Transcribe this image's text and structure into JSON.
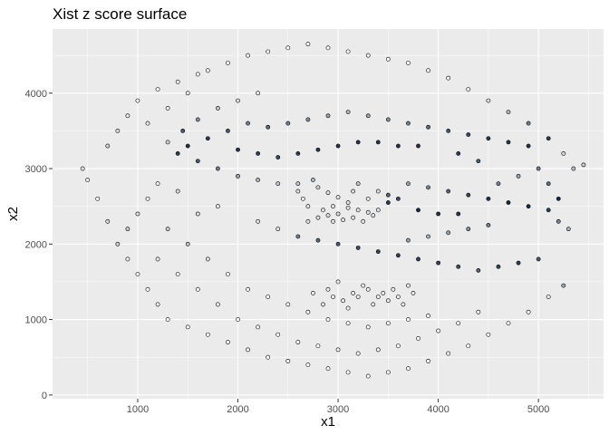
{
  "chart_data": {
    "type": "scatter",
    "title": "Xist z score surface",
    "xlabel": "x1",
    "ylabel": "x2",
    "xlim": [
      150,
      5650
    ],
    "ylim": [
      -50,
      4850
    ],
    "x_ticks": [
      1000,
      2000,
      3000,
      4000,
      5000
    ],
    "x_tick_labels": [
      "1000",
      "2000",
      "3000",
      "4000",
      "5000"
    ],
    "y_ticks": [
      0,
      1000,
      2000,
      3000,
      4000
    ],
    "y_tick_labels": [
      "0",
      "1000",
      "2000",
      "3000",
      "4000"
    ],
    "grid": true,
    "legend": "none",
    "colors": {
      "panel_background": "#ebebeb",
      "grid_major": "#ffffff",
      "point_outline": "#000000",
      "point_fill_low": "#ffffff",
      "point_fill_high": "#132b43"
    },
    "series": [
      {
        "values": [
          [
            3000,
            2400
          ],
          [
            3150,
            2350
          ],
          [
            2950,
            2300
          ],
          [
            3300,
            2420
          ],
          [
            2850,
            2450
          ],
          [
            3100,
            2480
          ],
          [
            3250,
            2300
          ],
          [
            2900,
            2380
          ],
          [
            3200,
            2450
          ],
          [
            3050,
            2320
          ],
          [
            2800,
            2350
          ],
          [
            3350,
            2380
          ],
          [
            2700,
            2300
          ],
          [
            3400,
            2450
          ],
          [
            2950,
            2500
          ],
          [
            3100,
            2550
          ],
          [
            3000,
            2620
          ],
          [
            2900,
            2680
          ],
          [
            3150,
            2700
          ],
          [
            2800,
            2750
          ],
          [
            3200,
            2800
          ],
          [
            2750,
            2850
          ],
          [
            3300,
            2600
          ],
          [
            3400,
            2700
          ],
          [
            3500,
            2650
          ],
          [
            3600,
            2600
          ],
          [
            2650,
            2600
          ],
          [
            2600,
            2700
          ],
          [
            3500,
            2550
          ],
          [
            2700,
            2500
          ],
          [
            3050,
            1250
          ],
          [
            3200,
            1300
          ],
          [
            3350,
            1200
          ],
          [
            3450,
            1350
          ],
          [
            2950,
            1300
          ],
          [
            3100,
            1150
          ],
          [
            3300,
            1400
          ],
          [
            2850,
            1200
          ],
          [
            3500,
            1250
          ],
          [
            3600,
            1300
          ],
          [
            3750,
            1350
          ],
          [
            3650,
            1200
          ],
          [
            2750,
            1350
          ],
          [
            3550,
            1400
          ],
          [
            3150,
            1350
          ],
          [
            3400,
            1300
          ],
          [
            3250,
            1450
          ],
          [
            2900,
            1400
          ],
          [
            3000,
            1500
          ],
          [
            3700,
            1450
          ],
          [
            1500,
            3300
          ],
          [
            1700,
            3400
          ],
          [
            1900,
            3500
          ],
          [
            2100,
            3600
          ],
          [
            2300,
            3550
          ],
          [
            2500,
            3600
          ],
          [
            2700,
            3650
          ],
          [
            2900,
            3700
          ],
          [
            3100,
            3750
          ],
          [
            3300,
            3700
          ],
          [
            3500,
            3650
          ],
          [
            3700,
            3600
          ],
          [
            3900,
            3550
          ],
          [
            4100,
            3500
          ],
          [
            4300,
            3450
          ],
          [
            4500,
            3400
          ],
          [
            4700,
            3350
          ],
          [
            4900,
            3300
          ],
          [
            1600,
            3100
          ],
          [
            1800,
            3000
          ],
          [
            2000,
            2900
          ],
          [
            2200,
            2850
          ],
          [
            2400,
            2800
          ],
          [
            2600,
            2800
          ],
          [
            3700,
            2800
          ],
          [
            3900,
            2750
          ],
          [
            4100,
            2700
          ],
          [
            4300,
            2650
          ],
          [
            4500,
            2600
          ],
          [
            4700,
            2550
          ],
          [
            4900,
            2500
          ],
          [
            5100,
            2450
          ],
          [
            5200,
            2300
          ],
          [
            5200,
            2600
          ],
          [
            4600,
            2800
          ],
          [
            4800,
            2900
          ],
          [
            5000,
            3000
          ],
          [
            5100,
            2800
          ],
          [
            4400,
            3100
          ],
          [
            4200,
            3200
          ],
          [
            3800,
            3300
          ],
          [
            3600,
            3300
          ],
          [
            3400,
            3350
          ],
          [
            3200,
            3350
          ],
          [
            3000,
            3300
          ],
          [
            2800,
            3250
          ],
          [
            2600,
            3200
          ],
          [
            2400,
            3150
          ],
          [
            2200,
            3200
          ],
          [
            2000,
            3250
          ],
          [
            2600,
            2100
          ],
          [
            2800,
            2050
          ],
          [
            3000,
            2000
          ],
          [
            3200,
            1950
          ],
          [
            3400,
            1900
          ],
          [
            3600,
            1850
          ],
          [
            3800,
            1800
          ],
          [
            4000,
            1750
          ],
          [
            4200,
            1700
          ],
          [
            4400,
            1650
          ],
          [
            4600,
            1700
          ],
          [
            4800,
            1750
          ],
          [
            5000,
            1800
          ],
          [
            2400,
            2200
          ],
          [
            2200,
            2300
          ],
          [
            3900,
            2100
          ],
          [
            4100,
            2150
          ],
          [
            4300,
            2200
          ],
          [
            4500,
            2250
          ],
          [
            3700,
            2050
          ],
          [
            4000,
            2400
          ],
          [
            4200,
            2400
          ],
          [
            3800,
            2450
          ],
          [
            1400,
            3200
          ],
          [
            1300,
            3350
          ],
          [
            1450,
            3500
          ],
          [
            1600,
            3650
          ],
          [
            1800,
            3800
          ],
          [
            2000,
            3900
          ],
          [
            2200,
            4000
          ],
          [
            800,
            2000
          ],
          [
            900,
            1800
          ],
          [
            1000,
            1600
          ],
          [
            1100,
            1400
          ],
          [
            1200,
            1200
          ],
          [
            1300,
            1000
          ],
          [
            1500,
            900
          ],
          [
            1700,
            800
          ],
          [
            1900,
            700
          ],
          [
            2100,
            600
          ],
          [
            2300,
            500
          ],
          [
            2500,
            450
          ],
          [
            2700,
            400
          ],
          [
            2900,
            350
          ],
          [
            3100,
            300
          ],
          [
            3300,
            250
          ],
          [
            3500,
            300
          ],
          [
            3700,
            350
          ],
          [
            3900,
            450
          ],
          [
            4100,
            550
          ],
          [
            4300,
            650
          ],
          [
            4500,
            800
          ],
          [
            4700,
            950
          ],
          [
            4900,
            1100
          ],
          [
            5100,
            1300
          ],
          [
            5250,
            1450
          ],
          [
            700,
            2300
          ],
          [
            600,
            2600
          ],
          [
            500,
            2850
          ],
          [
            450,
            3000
          ],
          [
            1200,
            1800
          ],
          [
            1400,
            1600
          ],
          [
            1600,
            1400
          ],
          [
            1800,
            1200
          ],
          [
            2000,
            1000
          ],
          [
            2200,
            900
          ],
          [
            2400,
            800
          ],
          [
            2600,
            700
          ],
          [
            2800,
            650
          ],
          [
            3000,
            600
          ],
          [
            3200,
            550
          ],
          [
            3400,
            600
          ],
          [
            3600,
            650
          ],
          [
            3800,
            750
          ],
          [
            4000,
            850
          ],
          [
            4200,
            950
          ],
          [
            4400,
            1100
          ],
          [
            1500,
            2000
          ],
          [
            1700,
            1800
          ],
          [
            1900,
            1600
          ],
          [
            2100,
            1400
          ],
          [
            2300,
            1300
          ],
          [
            2500,
            1200
          ],
          [
            2700,
            1100
          ],
          [
            2900,
            1000
          ],
          [
            3100,
            950
          ],
          [
            3300,
            900
          ],
          [
            3500,
            950
          ],
          [
            3700,
            1000
          ],
          [
            3900,
            1050
          ],
          [
            1000,
            2400
          ],
          [
            1100,
            2600
          ],
          [
            1200,
            2800
          ],
          [
            900,
            2200
          ],
          [
            1300,
            2200
          ],
          [
            1600,
            2400
          ],
          [
            1800,
            2500
          ],
          [
            1400,
            2700
          ],
          [
            1700,
            4300
          ],
          [
            1900,
            4400
          ],
          [
            2100,
            4500
          ],
          [
            2300,
            4550
          ],
          [
            2500,
            4600
          ],
          [
            2700,
            4650
          ],
          [
            2900,
            4600
          ],
          [
            3100,
            4550
          ],
          [
            3300,
            4500
          ],
          [
            3500,
            4450
          ],
          [
            3700,
            4400
          ],
          [
            3900,
            4300
          ],
          [
            4100,
            4200
          ],
          [
            4300,
            4050
          ],
          [
            4500,
            3900
          ],
          [
            4700,
            3750
          ],
          [
            4900,
            3600
          ],
          [
            5100,
            3400
          ],
          [
            5250,
            3200
          ],
          [
            5350,
            3000
          ],
          [
            5450,
            3050
          ],
          [
            5300,
            2200
          ],
          [
            1000,
            3900
          ],
          [
            1200,
            4050
          ],
          [
            1400,
            4150
          ],
          [
            1600,
            4250
          ],
          [
            900,
            3700
          ],
          [
            800,
            3500
          ],
          [
            700,
            3300
          ],
          [
            1100,
            3600
          ],
          [
            1300,
            3800
          ],
          [
            1500,
            4000
          ]
        ]
      }
    ]
  }
}
